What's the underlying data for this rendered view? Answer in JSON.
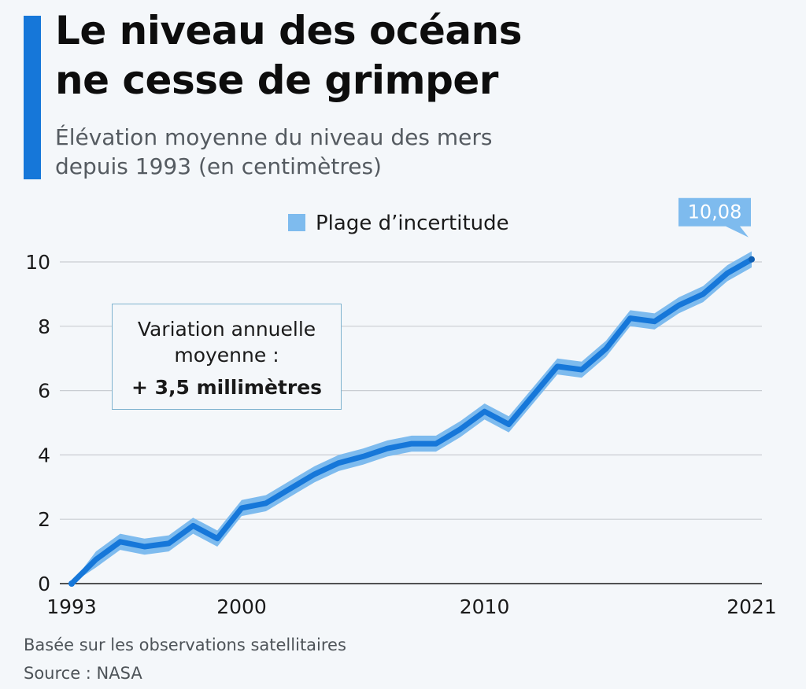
{
  "header": {
    "title_line1": "Le niveau des océans",
    "title_line2": "ne cesse de grimper",
    "subtitle_line1": "Élévation moyenne du niveau des mers",
    "subtitle_line2": "depuis 1993 (en centimètres)"
  },
  "annotation": {
    "line1": "Variation annuelle",
    "line2": "moyenne :",
    "line3": "+ 3,5 millimètres"
  },
  "callout": {
    "label": "10,08"
  },
  "footer": {
    "note": "Basée sur les observations satellitaires",
    "source": "Source : NASA"
  },
  "colors": {
    "accent": "#1677d9",
    "line": "#1677d9",
    "band": "#7ebbee",
    "grid": "#c9cdd2",
    "background": "#f4f7fa"
  },
  "chart_data": {
    "type": "line",
    "title": "Le niveau des océans ne cesse de grimper",
    "subtitle": "Élévation moyenne du niveau des mers depuis 1993 (en centimètres)",
    "xlabel": "",
    "ylabel": "",
    "xlim": [
      1993,
      2021
    ],
    "ylim": [
      0,
      10
    ],
    "grid": true,
    "legend_position": "top",
    "x_tick_labels": [
      "1993",
      "2000",
      "2010",
      "2021"
    ],
    "y_tick_labels": [
      "0",
      "2",
      "4",
      "6",
      "8",
      "10"
    ],
    "x": [
      1993,
      1994,
      1995,
      1996,
      1997,
      1998,
      1999,
      2000,
      2001,
      2002,
      2003,
      2004,
      2005,
      2006,
      2007,
      2008,
      2009,
      2010,
      2011,
      2012,
      2013,
      2014,
      2015,
      2016,
      2017,
      2018,
      2019,
      2020,
      2021
    ],
    "series": [
      {
        "values": [
          0,
          0.75,
          1.3,
          1.15,
          1.25,
          1.8,
          1.4,
          2.35,
          2.5,
          2.95,
          3.4,
          3.75,
          3.95,
          4.2,
          4.35,
          4.35,
          4.8,
          5.35,
          4.95,
          5.85,
          6.75,
          6.65,
          7.3,
          8.25,
          8.15,
          8.65,
          9.0,
          9.65,
          10.08
        ]
      }
    ],
    "band": {
      "name": "Plage d’incertitude",
      "half_width": 0.25
    },
    "annotations": [
      {
        "x": 2021,
        "y": 10.08,
        "text": "10,08"
      }
    ]
  }
}
